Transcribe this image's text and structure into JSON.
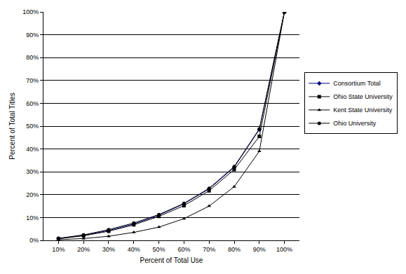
{
  "chart_data": {
    "type": "line",
    "x_label": "Percent of Total Use",
    "y_label": "Percent of Total Titles",
    "categories": [
      "10%",
      "20%",
      "30%",
      "40%",
      "50%",
      "60%",
      "70%",
      "80%",
      "90%",
      "100%"
    ],
    "series": [
      {
        "name": "Consortium Total",
        "color": "#000080",
        "marker": "diamond",
        "line_style": "solid",
        "values": [
          0.8,
          2.2,
          4.3,
          7.2,
          11,
          16,
          22.5,
          32,
          48.5,
          100
        ]
      },
      {
        "name": "Ohio State University",
        "color": "#000000",
        "marker": "square",
        "line_style": "solid",
        "values": [
          0.7,
          2,
          4,
          6.8,
          10.5,
          15.2,
          21.7,
          31,
          45.5,
          100
        ]
      },
      {
        "name": "Kent State University",
        "color": "#000000",
        "marker": "triangle-up",
        "line_style": "solid",
        "values": [
          0.3,
          0.8,
          1.8,
          3.5,
          5.8,
          9.5,
          15,
          23.5,
          39,
          100
        ]
      },
      {
        "name": "Ohio University",
        "color": "#000000",
        "marker": "circle",
        "line_style": "solid",
        "values": [
          0.9,
          2.4,
          4.7,
          7.6,
          11.3,
          16.2,
          22.8,
          32.3,
          48.8,
          100
        ]
      }
    ],
    "ylim": [
      0,
      100
    ],
    "yticks": [
      {
        "value": 0,
        "label": "0%"
      },
      {
        "value": 10,
        "label": "10%"
      },
      {
        "value": 20,
        "label": "20%"
      },
      {
        "value": 30,
        "label": "30%"
      },
      {
        "value": 40,
        "label": "40%"
      },
      {
        "value": 50,
        "label": "50%"
      },
      {
        "value": 60,
        "label": "60%"
      },
      {
        "value": 70,
        "label": "70%"
      },
      {
        "value": 80,
        "label": "80%"
      },
      {
        "value": 90,
        "label": "90%"
      },
      {
        "value": 100,
        "label": "100%"
      }
    ],
    "grid": true,
    "legend": "right"
  }
}
